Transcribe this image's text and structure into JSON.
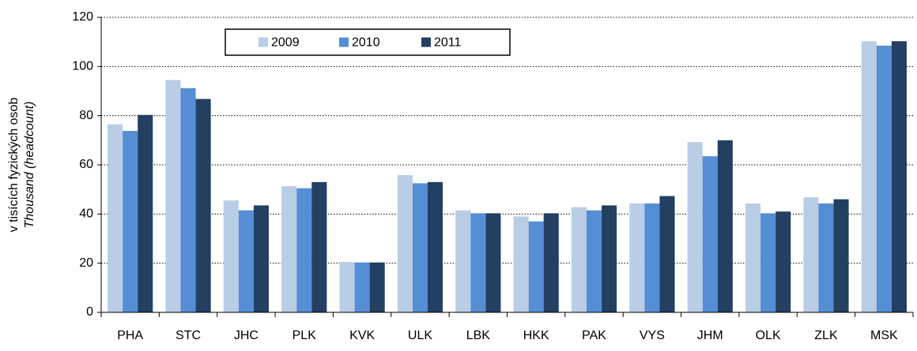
{
  "chart_data": {
    "type": "bar",
    "ylabel": [
      "v tisících fyzických osob",
      "Thousand (headcount)"
    ],
    "categories": [
      "PHA",
      "STC",
      "JHC",
      "PLK",
      "KVK",
      "ULK",
      "LBK",
      "HKK",
      "PAK",
      "VYS",
      "JHM",
      "OLK",
      "ZLK",
      "MSK"
    ],
    "series": [
      {
        "name": "2009",
        "color": "#b9cde5",
        "values": [
          76.5,
          94.5,
          45.5,
          51.3,
          20.5,
          55.8,
          41.5,
          39,
          42.8,
          44.3,
          69.3,
          44.3,
          46.8,
          110.3
        ]
      },
      {
        "name": "2010",
        "color": "#558ed5",
        "values": [
          73.8,
          91.2,
          41.5,
          50.5,
          20.3,
          52.5,
          40.3,
          37,
          41.5,
          44.3,
          63.5,
          40.3,
          44.3,
          108.5
        ]
      },
      {
        "name": "2011",
        "color": "#233f62",
        "values": [
          80.3,
          86.8,
          43.5,
          53,
          20.3,
          53,
          40.3,
          40.3,
          43.5,
          47.3,
          70,
          41,
          46,
          110.3
        ]
      }
    ],
    "ylim": [
      0,
      120
    ],
    "yticks": [
      0,
      20,
      40,
      60,
      80,
      100,
      120
    ],
    "grid": true,
    "legend": "top"
  }
}
